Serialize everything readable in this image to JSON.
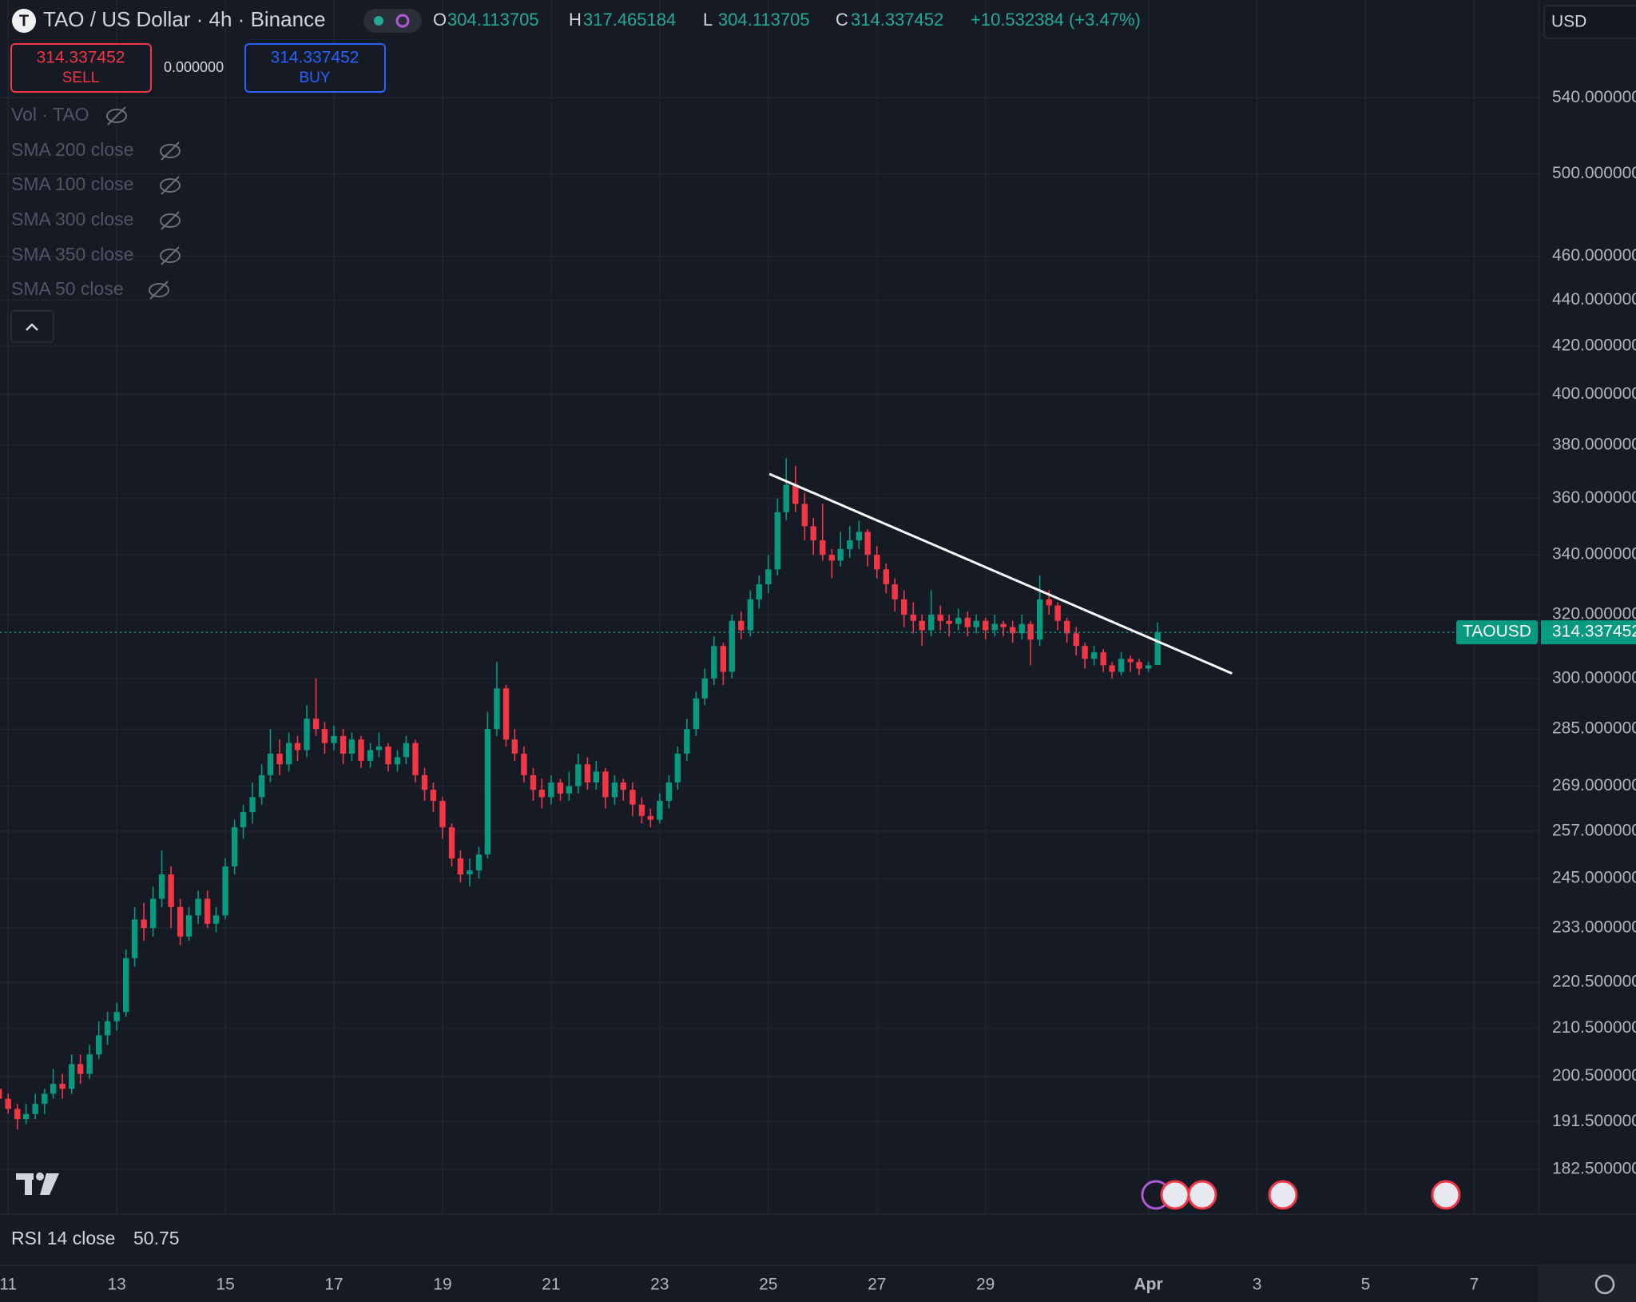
{
  "ui": {
    "logo": "T",
    "title": "TAO / US Dollar · 4h · Binance",
    "o_label": "O",
    "h_label": "H",
    "l_label": "L",
    "c_label": "C",
    "change": "+10.532384 (+3.47%)",
    "sell": "SELL",
    "buy": "BUY",
    "spread": "0.000000",
    "currency": "USD",
    "symbol_tag": "TAOUSD",
    "legends": [
      "Vol · TAO",
      "SMA 200 close",
      "SMA 100 close",
      "SMA 300 close",
      "SMA 350 close",
      "SMA 50 close"
    ],
    "rsi_label": "RSI 14 close",
    "rsi_value": "50.75"
  },
  "chart_data": {
    "type": "candlestick",
    "log_scale": true,
    "grid": true,
    "up_color": "#089981",
    "down_color": "#f23645",
    "xlim": [
      10.85,
      39.2
    ],
    "ylim": [
      174.4,
      596.3
    ],
    "xticks": [
      11,
      13,
      15,
      17,
      19,
      21,
      23,
      25,
      27,
      29,
      {
        "value": 32,
        "label": "Apr"
      },
      {
        "value": 34,
        "label": "3"
      },
      {
        "value": 36,
        "label": "5"
      },
      {
        "value": 38,
        "label": "7"
      }
    ],
    "yticks": [
      {
        "value": 182.5,
        "label": "182.500000"
      },
      {
        "value": 191.5,
        "label": "191.500000"
      },
      {
        "value": 200.5,
        "label": "200.500000"
      },
      {
        "value": 210.5,
        "label": "210.500000"
      },
      {
        "value": 220.5,
        "label": "220.500000"
      },
      {
        "value": 233,
        "label": "233.000000"
      },
      {
        "value": 245,
        "label": "245.000000"
      },
      {
        "value": 257,
        "label": "257.000000"
      },
      {
        "value": 269,
        "label": "269.000000"
      },
      {
        "value": 285,
        "label": "285.000000"
      },
      {
        "value": 300,
        "label": "300.000000"
      },
      {
        "value": 320,
        "label": "320.000000"
      },
      {
        "value": 340,
        "label": "340.000000"
      },
      {
        "value": 360,
        "label": "360.000000"
      },
      {
        "value": 380,
        "label": "380.000000"
      },
      {
        "value": 400,
        "label": "400.000000"
      },
      {
        "value": 420,
        "label": "420.000000"
      },
      {
        "value": 440,
        "label": "440.000000"
      },
      {
        "value": 460,
        "label": "460.000000"
      },
      {
        "value": 500,
        "label": "500.000000"
      },
      {
        "value": 540,
        "label": "540.000000"
      }
    ],
    "trendline": {
      "x": [
        25.02,
        33.54
      ],
      "y": [
        369,
        301.5
      ],
      "color": "#ffffff"
    },
    "x": [
      10.83,
      11,
      11.17,
      11.33,
      11.5,
      11.67,
      11.83,
      12,
      12.17,
      12.33,
      12.5,
      12.67,
      12.83,
      13,
      13.17,
      13.33,
      13.5,
      13.67,
      13.83,
      14,
      14.17,
      14.33,
      14.5,
      14.67,
      14.83,
      15,
      15.17,
      15.33,
      15.5,
      15.67,
      15.83,
      16,
      16.17,
      16.33,
      16.5,
      16.67,
      16.83,
      17,
      17.17,
      17.33,
      17.5,
      17.67,
      17.83,
      18,
      18.17,
      18.33,
      18.5,
      18.67,
      18.83,
      19,
      19.17,
      19.33,
      19.5,
      19.67,
      19.83,
      20,
      20.17,
      20.33,
      20.5,
      20.67,
      20.83,
      21,
      21.17,
      21.33,
      21.5,
      21.67,
      21.83,
      22,
      22.17,
      22.33,
      22.5,
      22.67,
      22.83,
      23,
      23.17,
      23.33,
      23.5,
      23.67,
      23.83,
      24,
      24.17,
      24.33,
      24.5,
      24.67,
      24.83,
      25,
      25.17,
      25.33,
      25.5,
      25.67,
      25.83,
      26,
      26.17,
      26.33,
      26.5,
      26.67,
      26.83,
      27,
      27.17,
      27.33,
      27.5,
      27.67,
      27.83,
      28,
      28.17,
      28.33,
      28.5,
      28.67,
      28.83,
      29,
      29.17,
      29.33,
      29.5,
      29.67,
      29.83,
      30,
      30.17,
      30.33,
      30.5,
      30.67,
      30.83,
      31,
      31.17,
      31.33,
      31.5,
      31.67,
      31.83,
      32,
      32.17
    ],
    "ohlc": [
      [
        198,
        200,
        195,
        196
      ],
      [
        196,
        197,
        193,
        194
      ],
      [
        194,
        195,
        190,
        192
      ],
      [
        192,
        195,
        191,
        193
      ],
      [
        193,
        197,
        192,
        195
      ],
      [
        195,
        198,
        193,
        197
      ],
      [
        197,
        202,
        196,
        199
      ],
      [
        199,
        201,
        196,
        198
      ],
      [
        198,
        205,
        197,
        203
      ],
      [
        203,
        205,
        199,
        201
      ],
      [
        201,
        207,
        200,
        205
      ],
      [
        205,
        212,
        204,
        209
      ],
      [
        209,
        214,
        207,
        212
      ],
      [
        212,
        216,
        210,
        214
      ],
      [
        214,
        228,
        213,
        226
      ],
      [
        226,
        238,
        224,
        235
      ],
      [
        235,
        239,
        230,
        233
      ],
      [
        233,
        243,
        231,
        240
      ],
      [
        240,
        252,
        238,
        246
      ],
      [
        246,
        248,
        233,
        238
      ],
      [
        238,
        240,
        229,
        231
      ],
      [
        231,
        238,
        230,
        236
      ],
      [
        236,
        242,
        234,
        240
      ],
      [
        240,
        242,
        233,
        234
      ],
      [
        234,
        238,
        232,
        236
      ],
      [
        236,
        250,
        235,
        248
      ],
      [
        248,
        260,
        246,
        258
      ],
      [
        258,
        264,
        255,
        262
      ],
      [
        262,
        270,
        259,
        266
      ],
      [
        266,
        275,
        264,
        272
      ],
      [
        272,
        285,
        270,
        278
      ],
      [
        278,
        282,
        272,
        275
      ],
      [
        275,
        284,
        273,
        281
      ],
      [
        281,
        283,
        276,
        279
      ],
      [
        279,
        292,
        277,
        288
      ],
      [
        288,
        300,
        283,
        285
      ],
      [
        285,
        287,
        278,
        281
      ],
      [
        281,
        286,
        279,
        283
      ],
      [
        283,
        285,
        275,
        278
      ],
      [
        278,
        284,
        276,
        282
      ],
      [
        282,
        283,
        274,
        276
      ],
      [
        276,
        281,
        274,
        279
      ],
      [
        279,
        284,
        277,
        280
      ],
      [
        280,
        281,
        273,
        275
      ],
      [
        275,
        279,
        273,
        277
      ],
      [
        277,
        283,
        275,
        281
      ],
      [
        281,
        282,
        270,
        272
      ],
      [
        272,
        274,
        265,
        268
      ],
      [
        268,
        270,
        262,
        265
      ],
      [
        265,
        266,
        255,
        258
      ],
      [
        258,
        259,
        248,
        250
      ],
      [
        250,
        252,
        244,
        246
      ],
      [
        246,
        250,
        243,
        247
      ],
      [
        247,
        253,
        245,
        251
      ],
      [
        251,
        290,
        250,
        285
      ],
      [
        285,
        305,
        283,
        297
      ],
      [
        297,
        298,
        280,
        282
      ],
      [
        282,
        285,
        276,
        278
      ],
      [
        278,
        280,
        270,
        272
      ],
      [
        272,
        274,
        265,
        268
      ],
      [
        268,
        271,
        263,
        266
      ],
      [
        266,
        272,
        264,
        270
      ],
      [
        270,
        271,
        265,
        267
      ],
      [
        267,
        273,
        265,
        269
      ],
      [
        269,
        278,
        267,
        275
      ],
      [
        275,
        277,
        268,
        270
      ],
      [
        270,
        276,
        268,
        273
      ],
      [
        273,
        274,
        263,
        266
      ],
      [
        266,
        272,
        264,
        270
      ],
      [
        270,
        271,
        265,
        268
      ],
      [
        268,
        270,
        261,
        264
      ],
      [
        264,
        266,
        259,
        261
      ],
      [
        261,
        263,
        258,
        260
      ],
      [
        260,
        267,
        259,
        265
      ],
      [
        265,
        272,
        263,
        270
      ],
      [
        270,
        280,
        268,
        278
      ],
      [
        278,
        288,
        276,
        285
      ],
      [
        285,
        296,
        283,
        294
      ],
      [
        294,
        303,
        292,
        300
      ],
      [
        300,
        313,
        298,
        310
      ],
      [
        310,
        311,
        298,
        302
      ],
      [
        302,
        320,
        300,
        318
      ],
      [
        318,
        321,
        312,
        315
      ],
      [
        315,
        328,
        313,
        325
      ],
      [
        325,
        333,
        322,
        330
      ],
      [
        330,
        340,
        327,
        335
      ],
      [
        335,
        360,
        333,
        355
      ],
      [
        355,
        375,
        352,
        365
      ],
      [
        365,
        372,
        355,
        358
      ],
      [
        358,
        362,
        345,
        350
      ],
      [
        350,
        353,
        340,
        345
      ],
      [
        345,
        358,
        338,
        340
      ],
      [
        340,
        342,
        332,
        338
      ],
      [
        338,
        348,
        336,
        342
      ],
      [
        342,
        350,
        339,
        345
      ],
      [
        345,
        352,
        342,
        348
      ],
      [
        348,
        349,
        336,
        340
      ],
      [
        340,
        343,
        332,
        335
      ],
      [
        335,
        337,
        327,
        330
      ],
      [
        330,
        332,
        321,
        325
      ],
      [
        325,
        328,
        316,
        320
      ],
      [
        320,
        324,
        314,
        318
      ],
      [
        318,
        320,
        310,
        315
      ],
      [
        315,
        328,
        313,
        320
      ],
      [
        320,
        323,
        315,
        318
      ],
      [
        318,
        320,
        313,
        317
      ],
      [
        317,
        322,
        315,
        319
      ],
      [
        319,
        321,
        313,
        316
      ],
      [
        316,
        320,
        314,
        318
      ],
      [
        318,
        319,
        312,
        315
      ],
      [
        315,
        320,
        313,
        317
      ],
      [
        317,
        318,
        313,
        316
      ],
      [
        316,
        318,
        311,
        314
      ],
      [
        314,
        320,
        312,
        317
      ],
      [
        317,
        318,
        304,
        312
      ],
      [
        312,
        333,
        310,
        325
      ],
      [
        325,
        328,
        320,
        323
      ],
      [
        323,
        324,
        315,
        318
      ],
      [
        318,
        319,
        311,
        314
      ],
      [
        314,
        316,
        307,
        310
      ],
      [
        310,
        311,
        303,
        306
      ],
      [
        306,
        310,
        304,
        308
      ],
      [
        308,
        309,
        302,
        304
      ],
      [
        304,
        305,
        300,
        302
      ],
      [
        302,
        308,
        301,
        306
      ],
      [
        306,
        307,
        302,
        305
      ],
      [
        305,
        306,
        301,
        303
      ],
      [
        303,
        305,
        302,
        304
      ],
      [
        304.113705,
        317.465184,
        304.113705,
        314.337452
      ]
    ]
  }
}
